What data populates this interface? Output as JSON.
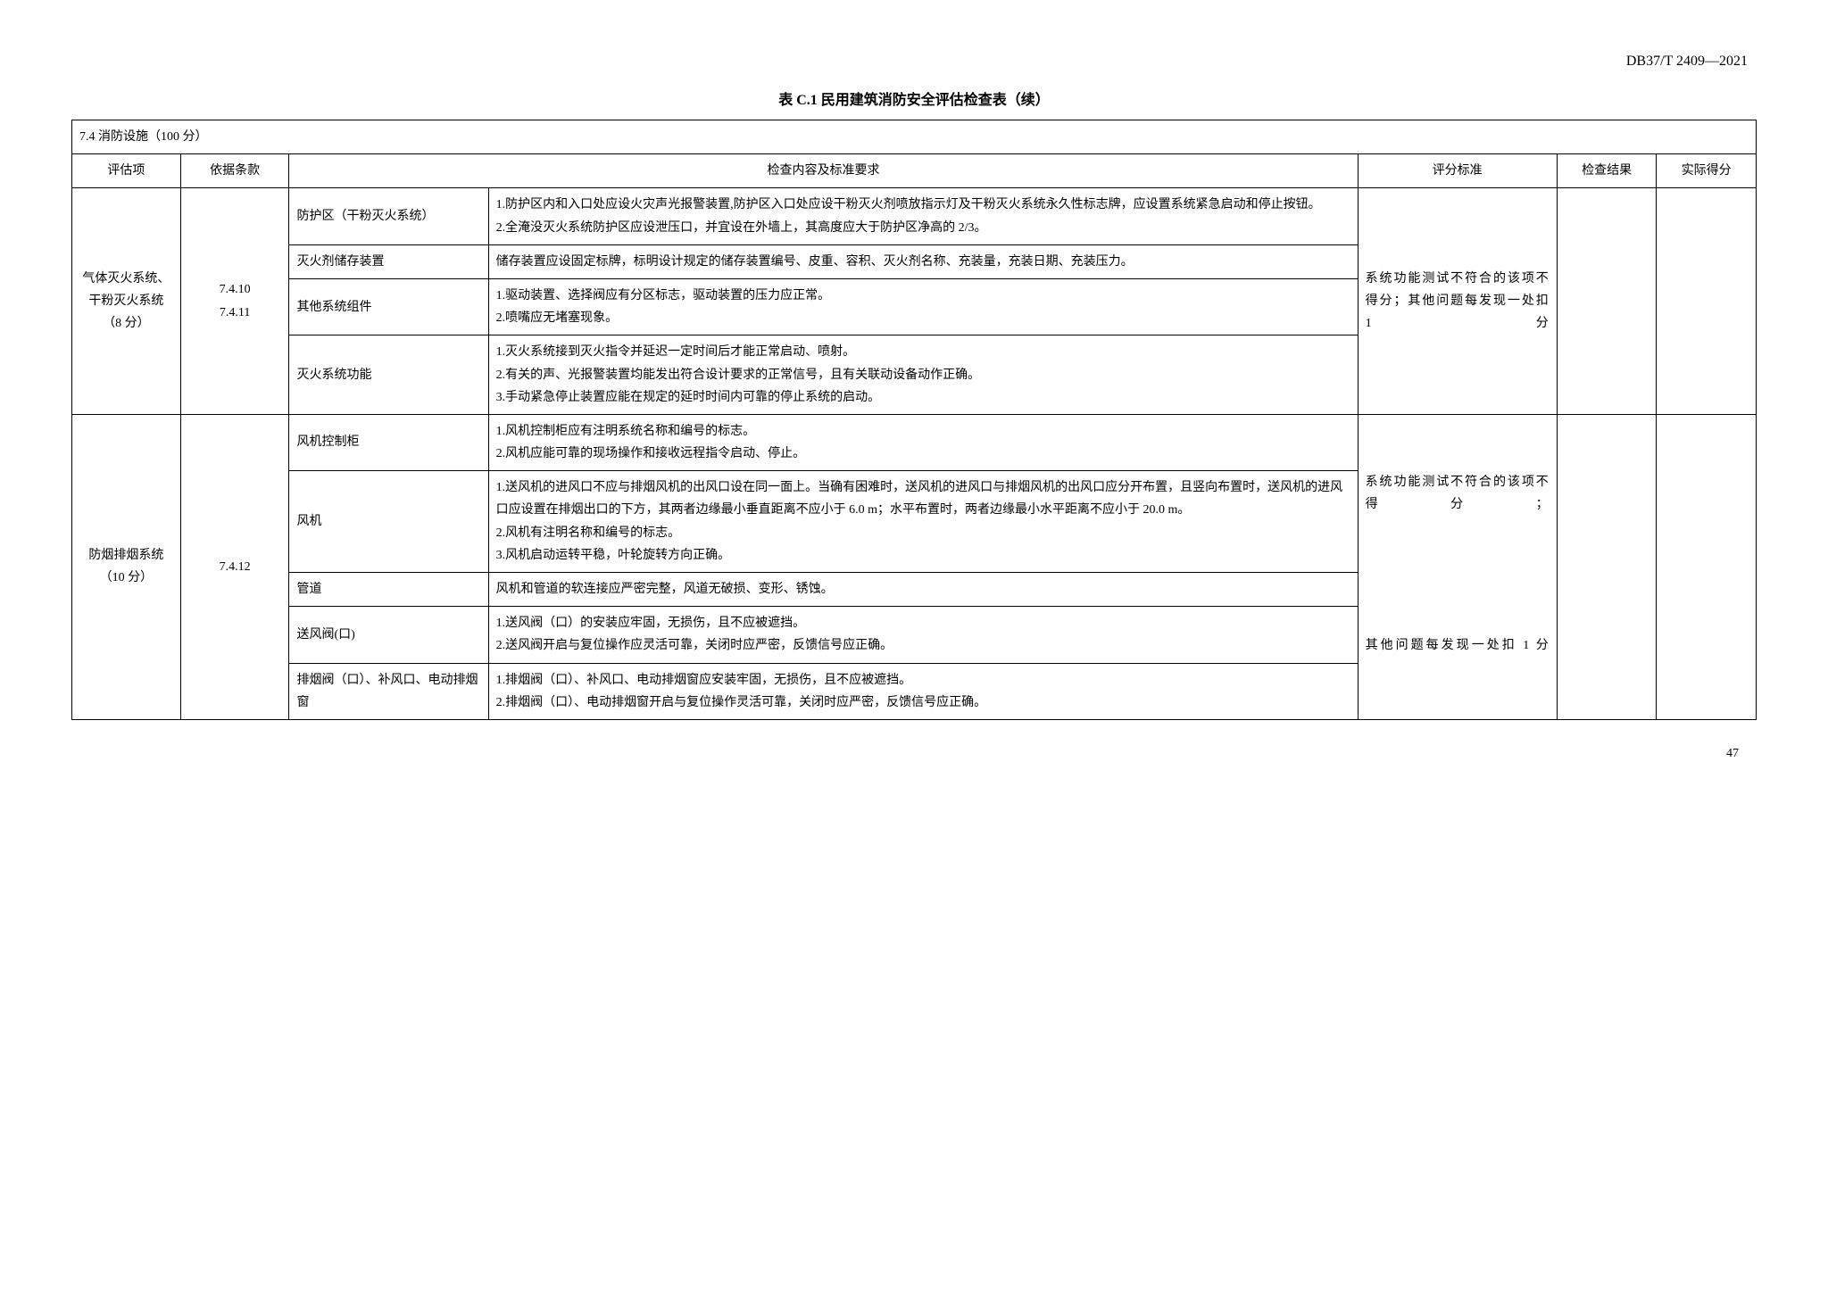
{
  "doc_code": "DB37/T 2409—2021",
  "table_title": "表 C.1 民用建筑消防安全评估检查表（续）",
  "page_number": "47",
  "section_header": "7.4 消防设施（100 分）",
  "headers": {
    "eval_item": "评估项",
    "basis": "依据条款",
    "content": "检查内容及标准要求",
    "criteria": "评分标准",
    "result": "检查结果",
    "score": "实际得分"
  },
  "group1": {
    "eval_item": "气体灭火系统、干粉灭火系统（8 分）",
    "basis": "7.4.10\n7.4.11",
    "criteria": "系统功能测试不符合的该项不得分；其他问题每发现一处扣 1 分",
    "rows": [
      {
        "item": "防护区（干粉灭火系统）",
        "content": "1.防护区内和入口处应设火灾声光报警装置,防护区入口处应设干粉灭火剂喷放指示灯及干粉灭火系统永久性标志牌，应设置系统紧急启动和停止按钮。\n2.全淹没灭火系统防护区应设泄压口，并宜设在外墙上，其高度应大于防护区净高的 2/3。"
      },
      {
        "item": "灭火剂储存装置",
        "content": "储存装置应设固定标牌，标明设计规定的储存装置编号、皮重、容积、灭火剂名称、充装量，充装日期、充装压力。"
      },
      {
        "item": "其他系统组件",
        "content": "1.驱动装置、选择阀应有分区标志，驱动装置的压力应正常。\n2.喷嘴应无堵塞现象。"
      },
      {
        "item": "灭火系统功能",
        "content": "1.灭火系统接到灭火指令并延迟一定时间后才能正常启动、喷射。\n2.有关的声、光报警装置均能发出符合设计要求的正常信号，且有关联动设备动作正确。\n3.手动紧急停止装置应能在规定的延时时间内可靠的停止系统的启动。"
      }
    ]
  },
  "group2": {
    "eval_item": "防烟排烟系统（10 分）",
    "basis": "7.4.12",
    "criteria_part1": "系统功能测试不符合的该项不得分；",
    "criteria_part2": "其他问题每发现一处扣 1 分",
    "rows": [
      {
        "item": "风机控制柜",
        "content": "1.风机控制柜应有注明系统名称和编号的标志。\n2.风机应能可靠的现场操作和接收远程指令启动、停止。"
      },
      {
        "item": "风机",
        "content": "1.送风机的进风口不应与排烟风机的出风口设在同一面上。当确有困难时，送风机的进风口与排烟风机的出风口应分开布置，且竖向布置时，送风机的进风口应设置在排烟出口的下方，其两者边缘最小垂直距离不应小于 6.0 m；水平布置时，两者边缘最小水平距离不应小于 20.0 m。\n2.风机有注明名称和编号的标志。\n3.风机启动运转平稳，叶轮旋转方向正确。"
      },
      {
        "item": "管道",
        "content": "风机和管道的软连接应严密完整，风道无破损、变形、锈蚀。"
      },
      {
        "item": "送风阀(口)",
        "content": "1.送风阀（口）的安装应牢固，无损伤，且不应被遮挡。\n2.送风阀开启与复位操作应灵活可靠，关闭时应严密，反馈信号应正确。"
      },
      {
        "item": "排烟阀（口）、补风口、电动排烟窗",
        "content": "1.排烟阀（口）、补风口、电动排烟窗应安装牢固，无损伤，且不应被遮挡。\n2.排烟阀（口）、电动排烟窗开启与复位操作灵活可靠，关闭时应严密，反馈信号应正确。"
      }
    ]
  }
}
